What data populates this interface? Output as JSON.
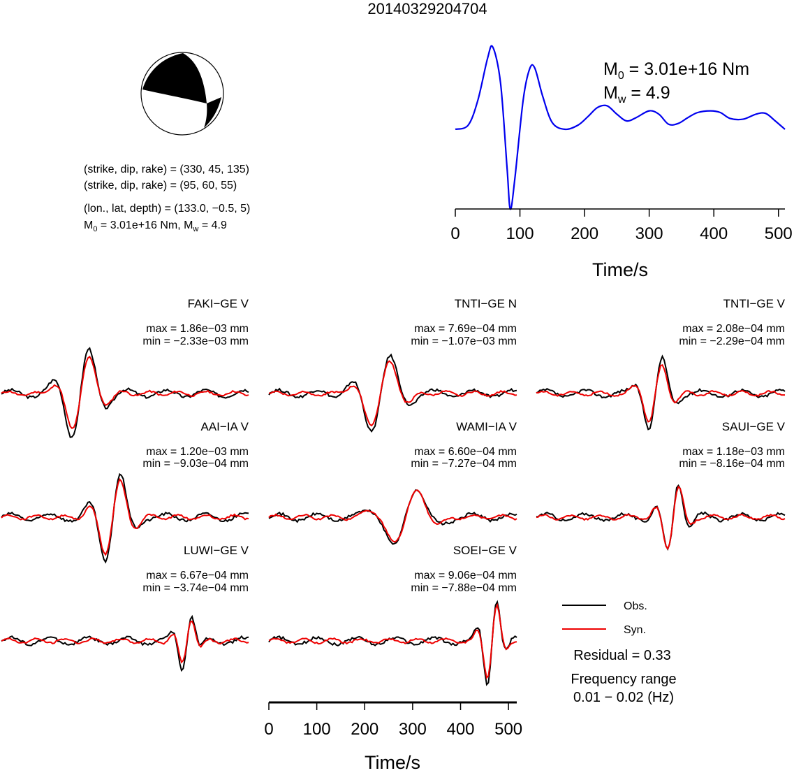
{
  "title": "20140329204704",
  "mechanism": {
    "planes": [
      {
        "text": "(strike, dip, rake) = (330, 45, 135)"
      },
      {
        "text": "(strike, dip, rake) = (95, 60, 55)"
      }
    ],
    "location": "(lon., lat, depth) = (133.0, −0.5, 5)",
    "moment_line": {
      "m0_prefix": "M",
      "m0_sub": "0",
      "m0_value": " = 3.01e+16 Nm, M",
      "mw_sub": "w",
      "mw_value": " = 4.9"
    }
  },
  "stf": {
    "m0_label": {
      "prefix": "M",
      "sub": "0",
      "value": " = 3.01e+16 Nm"
    },
    "mw_label": {
      "prefix": "M",
      "sub": "w",
      "value": " = 4.9"
    },
    "xlabel": "Time/s",
    "x_ticks": [
      "0",
      "100",
      "200",
      "300",
      "400",
      "500"
    ],
    "xlim": [
      0,
      510
    ],
    "color": "#0000ee"
  },
  "stations": [
    {
      "name": "FAKI−GE V",
      "max": "max = 1.86e−03 mm",
      "min": "min = −2.33e−03 mm"
    },
    {
      "name": "TNTI−GE N",
      "max": "max = 7.69e−04 mm",
      "min": "min = −1.07e−03 mm"
    },
    {
      "name": "TNTI−GE V",
      "max": "max = 2.08e−04 mm",
      "min": "min = −2.29e−04 mm"
    },
    {
      "name": "AAI−IA V",
      "max": "max = 1.20e−03 mm",
      "min": "min = −9.03e−04 mm"
    },
    {
      "name": "WAMI−IA V",
      "max": "max = 6.60e−04 mm",
      "min": "min = −7.27e−04 mm"
    },
    {
      "name": "SAUI−GE V",
      "max": "max = 1.18e−03 mm",
      "min": "min = −8.16e−04 mm"
    },
    {
      "name": "LUWI−GE V",
      "max": "max = 6.67e−04 mm",
      "min": "min = −3.74e−04 mm"
    },
    {
      "name": "SOEI−GE V",
      "max": "max = 9.06e−04 mm",
      "min": "min = −7.88e−04 mm"
    }
  ],
  "bottom_axis": {
    "xlabel": "Time/s",
    "x_ticks": [
      "0",
      "100",
      "200",
      "300",
      "400",
      "500"
    ],
    "xlim": [
      0,
      510
    ]
  },
  "legend": {
    "items": [
      {
        "label": "Obs.",
        "color": "#000000"
      },
      {
        "label": "Syn.",
        "color": "#ee0000"
      }
    ]
  },
  "residual": "Residual = 0.33",
  "frequency": {
    "label": "Frequency range",
    "range": "0.01 − 0.02 (Hz)"
  },
  "chart_data": [
    {
      "type": "line",
      "title": "",
      "xlabel": "Time/s",
      "xlim": [
        0,
        510
      ],
      "series": [
        {
          "x": [
            0,
            20,
            35,
            50,
            58,
            70,
            80,
            85,
            92,
            105,
            115,
            123,
            135,
            150,
            170,
            190,
            205,
            220,
            235,
            250,
            265,
            280,
            300,
            315,
            330,
            345,
            360,
            375,
            395,
            410,
            425,
            445,
            465,
            480,
            495,
            510
          ],
          "values": [
            0.0,
            0.05,
            0.35,
            0.85,
            0.98,
            0.55,
            -0.45,
            -0.95,
            -0.6,
            0.35,
            0.72,
            0.73,
            0.4,
            0.08,
            0.0,
            0.05,
            0.15,
            0.26,
            0.28,
            0.18,
            0.1,
            0.14,
            0.22,
            0.18,
            0.06,
            0.07,
            0.14,
            0.2,
            0.22,
            0.2,
            0.13,
            0.12,
            0.18,
            0.19,
            0.1,
            0.0
          ]
        }
      ]
    }
  ]
}
